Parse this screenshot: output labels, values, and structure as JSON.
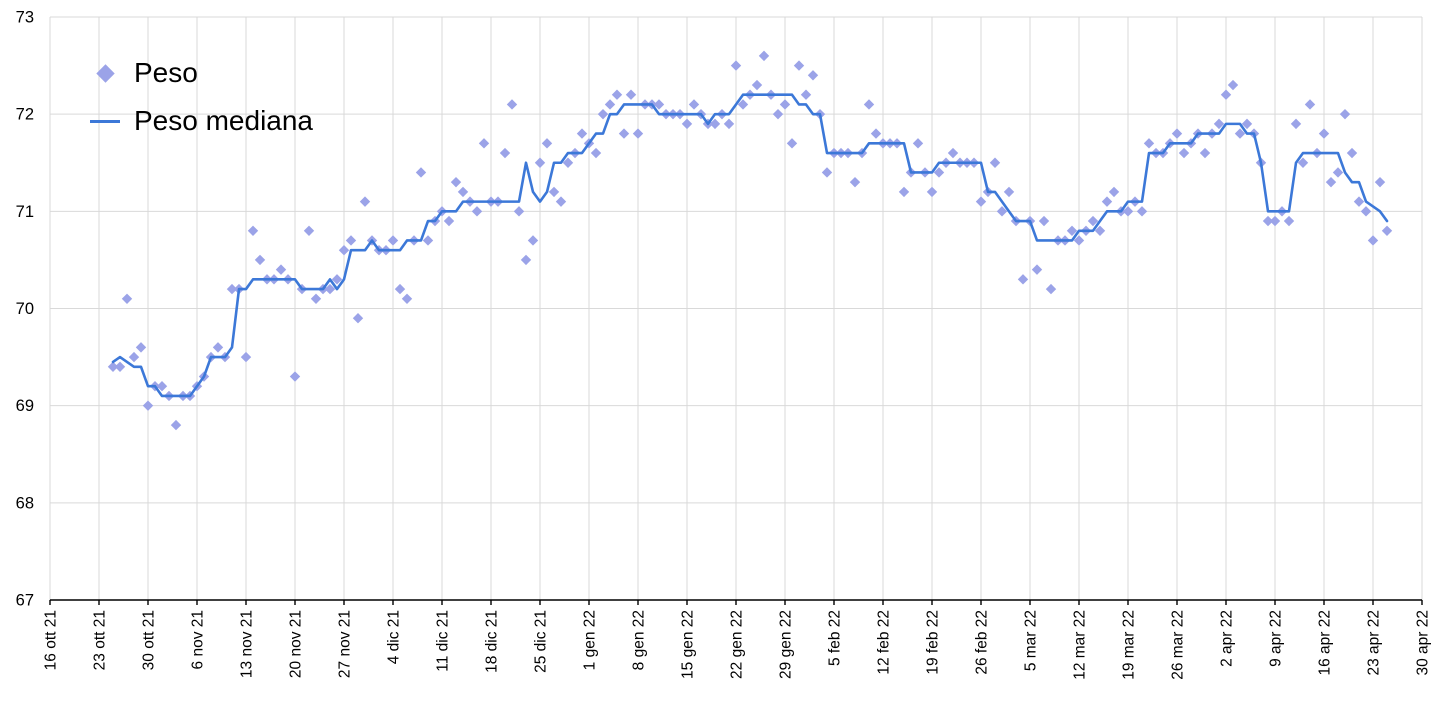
{
  "page": {
    "background": "#FFFFFF"
  },
  "chart_data": {
    "type": "scatter",
    "title": "",
    "legend": {
      "position": "top-left",
      "entries": [
        "Peso",
        "Peso mediana"
      ]
    },
    "x_axis": {
      "tick_labels": [
        "16 ott 21",
        "23 ott 21",
        "30 ott 21",
        "6 nov 21",
        "13 nov 21",
        "20 nov 21",
        "27 nov 21",
        "4 dic 21",
        "11 dic 21",
        "18 dic 21",
        "25 dic 21",
        "1 gen 22",
        "8 gen 22",
        "15 gen 22",
        "22 gen 22",
        "29 gen 22",
        "5 feb 22",
        "12 feb 22",
        "19 feb 22",
        "26 feb 22",
        "5 mar 22",
        "12 mar 22",
        "19 mar 22",
        "26 mar 22",
        "2 apr 22",
        "9 apr 22",
        "16 apr 22",
        "23 apr 22",
        "30 apr 22"
      ],
      "days_per_tick": 7,
      "data_start_day_offset": 9
    },
    "y_axis": {
      "min": 67,
      "max": 73,
      "ticks": [
        67,
        68,
        69,
        70,
        71,
        72,
        73
      ]
    },
    "grid": true,
    "series": [
      {
        "name": "Peso",
        "type": "scatter",
        "marker": "diamond",
        "color": "#9BA3E8",
        "values": [
          69.4,
          69.4,
          70.1,
          69.5,
          69.6,
          69.0,
          69.2,
          69.2,
          69.1,
          68.8,
          69.1,
          69.1,
          69.2,
          69.3,
          69.5,
          69.6,
          69.5,
          70.2,
          70.2,
          69.5,
          70.8,
          70.5,
          70.3,
          70.3,
          70.4,
          70.3,
          69.3,
          70.2,
          70.8,
          70.1,
          70.2,
          70.2,
          70.3,
          70.6,
          70.7,
          69.9,
          71.1,
          70.7,
          70.6,
          70.6,
          70.7,
          70.2,
          70.1,
          70.7,
          71.4,
          70.7,
          70.9,
          71.0,
          70.9,
          71.3,
          71.2,
          71.1,
          71.0,
          71.7,
          71.1,
          71.1,
          71.6,
          72.1,
          71.0,
          70.5,
          70.7,
          71.5,
          71.7,
          71.2,
          71.1,
          71.5,
          71.6,
          71.8,
          71.7,
          71.6,
          72.0,
          72.1,
          72.2,
          71.8,
          72.2,
          71.8,
          72.1,
          72.1,
          72.1,
          72.0,
          72.0,
          72.0,
          71.9,
          72.1,
          72.0,
          71.9,
          71.9,
          72.0,
          71.9,
          72.5,
          72.1,
          72.2,
          72.3,
          72.6,
          72.2,
          72.0,
          72.1,
          71.7,
          72.5,
          72.2,
          72.4,
          72.0,
          71.4,
          71.6,
          71.6,
          71.6,
          71.3,
          71.6,
          72.1,
          71.8,
          71.7,
          71.7,
          71.7,
          71.2,
          71.4,
          71.7,
          71.4,
          71.2,
          71.4,
          71.5,
          71.6,
          71.5,
          71.5,
          71.5,
          71.1,
          71.2,
          71.5,
          71.0,
          71.2,
          70.9,
          70.3,
          70.9,
          70.4,
          70.9,
          70.2,
          70.7,
          70.7,
          70.8,
          70.7,
          70.8,
          70.9,
          70.8,
          71.1,
          71.2,
          71.0,
          71.0,
          71.1,
          71.0,
          71.7,
          71.6,
          71.6,
          71.7,
          71.8,
          71.6,
          71.7,
          71.8,
          71.6,
          71.8,
          71.9,
          72.2,
          72.3,
          71.8,
          71.9,
          71.8,
          71.5,
          70.9,
          70.9,
          71.0,
          70.9,
          71.9,
          71.5,
          72.1,
          71.6,
          71.8,
          71.3,
          71.4,
          72.0,
          71.6,
          71.1,
          71.0,
          70.7,
          71.3,
          70.8
        ]
      },
      {
        "name": "Peso mediana",
        "type": "line",
        "color": "#3C78D8",
        "derived_from": "Peso",
        "statistic": "rolling_median",
        "window_days": 7
      }
    ],
    "colors": {
      "grid": "#D9D9D9",
      "axis": "#000000",
      "text": "#000000",
      "background": "#FFFFFF"
    }
  }
}
